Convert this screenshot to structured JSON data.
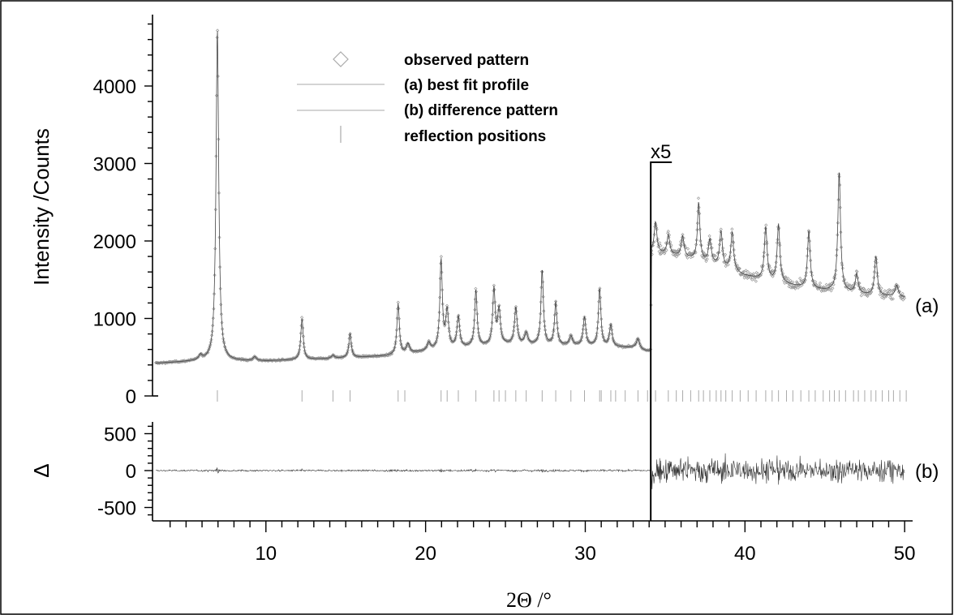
{
  "chart_data": {
    "type": "line",
    "ylabel_top": "Intensity /Counts",
    "ylabel_bottom": "Δ",
    "xlabel": "2Θ /°",
    "xlim": [
      3,
      50.5
    ],
    "ylim_top": [
      0,
      4850
    ],
    "ylim_bottom": [
      -650,
      620
    ],
    "x_ticks": [
      10,
      20,
      30,
      40,
      50
    ],
    "y_ticks_top": [
      0,
      1000,
      2000,
      3000,
      4000
    ],
    "y_ticks_bottom": [
      -500,
      0,
      500
    ],
    "scale_break": {
      "x": 34.1,
      "label": "x5",
      "factor": 5
    },
    "panel_labels": [
      "(a)",
      "(b)"
    ],
    "grid": false,
    "legend_position": "top-center",
    "legend": [
      {
        "name": "observed pattern",
        "marker": "diamond"
      },
      {
        "name": "(a) best fit profile",
        "marker": "line"
      },
      {
        "name": "(b) difference pattern",
        "marker": "line"
      },
      {
        "name": "reflection positions",
        "marker": "tick"
      }
    ],
    "background": [
      [
        3,
        420
      ],
      [
        6,
        450
      ],
      [
        10,
        450
      ],
      [
        14,
        480
      ],
      [
        18,
        520
      ],
      [
        21,
        600
      ],
      [
        25,
        660
      ],
      [
        30,
        640
      ],
      [
        33,
        620
      ],
      [
        34.1,
        550
      ],
      [
        34.15,
        1850
      ],
      [
        36,
        1800
      ],
      [
        38,
        1700
      ],
      [
        40,
        1550
      ],
      [
        44,
        1380
      ],
      [
        48,
        1300
      ],
      [
        50,
        1270
      ]
    ],
    "peaks": [
      {
        "x": 5.9,
        "height": 60,
        "width": 0.12
      },
      {
        "x": 6.96,
        "height": 4300,
        "width": 0.1
      },
      {
        "x": 9.3,
        "height": 50,
        "width": 0.12
      },
      {
        "x": 12.26,
        "height": 530,
        "width": 0.09
      },
      {
        "x": 14.2,
        "height": 40,
        "width": 0.12
      },
      {
        "x": 15.27,
        "height": 310,
        "width": 0.09
      },
      {
        "x": 18.28,
        "height": 660,
        "width": 0.09
      },
      {
        "x": 18.9,
        "height": 120,
        "width": 0.12
      },
      {
        "x": 20.2,
        "height": 100,
        "width": 0.12
      },
      {
        "x": 20.97,
        "height": 1150,
        "width": 0.09
      },
      {
        "x": 21.35,
        "height": 480,
        "width": 0.1
      },
      {
        "x": 22.05,
        "height": 400,
        "width": 0.1
      },
      {
        "x": 23.15,
        "height": 730,
        "width": 0.09
      },
      {
        "x": 24.28,
        "height": 720,
        "width": 0.09
      },
      {
        "x": 24.6,
        "height": 450,
        "width": 0.1
      },
      {
        "x": 25.65,
        "height": 480,
        "width": 0.1
      },
      {
        "x": 26.3,
        "height": 150,
        "width": 0.12
      },
      {
        "x": 27.3,
        "height": 970,
        "width": 0.09
      },
      {
        "x": 28.15,
        "height": 560,
        "width": 0.09
      },
      {
        "x": 29.1,
        "height": 120,
        "width": 0.12
      },
      {
        "x": 29.95,
        "height": 370,
        "width": 0.1
      },
      {
        "x": 30.9,
        "height": 750,
        "width": 0.09
      },
      {
        "x": 31.6,
        "height": 280,
        "width": 0.1
      },
      {
        "x": 33.3,
        "height": 130,
        "width": 0.12
      },
      {
        "x": 34.4,
        "height": 400,
        "width": 0.1
      },
      {
        "x": 35.2,
        "height": 250,
        "width": 0.1
      },
      {
        "x": 36.1,
        "height": 260,
        "width": 0.1
      },
      {
        "x": 37.1,
        "height": 750,
        "width": 0.09
      },
      {
        "x": 37.8,
        "height": 300,
        "width": 0.1
      },
      {
        "x": 38.5,
        "height": 450,
        "width": 0.1
      },
      {
        "x": 39.2,
        "height": 500,
        "width": 0.1
      },
      {
        "x": 41.3,
        "height": 680,
        "width": 0.1
      },
      {
        "x": 42.1,
        "height": 750,
        "width": 0.1
      },
      {
        "x": 44.0,
        "height": 750,
        "width": 0.1
      },
      {
        "x": 45.9,
        "height": 1550,
        "width": 0.1
      },
      {
        "x": 47.0,
        "height": 250,
        "width": 0.1
      },
      {
        "x": 48.2,
        "height": 500,
        "width": 0.1
      },
      {
        "x": 49.5,
        "height": 150,
        "width": 0.12
      }
    ],
    "reflection_positions": [
      6.96,
      12.26,
      14.2,
      15.27,
      18.28,
      18.7,
      20.97,
      21.35,
      22.05,
      23.15,
      24.28,
      24.6,
      25.0,
      25.65,
      26.3,
      27.3,
      28.15,
      29.1,
      29.95,
      30.9,
      31.0,
      31.6,
      31.9,
      32.5,
      33.3,
      33.9,
      34.4,
      35.2,
      35.7,
      36.1,
      36.6,
      37.1,
      37.4,
      37.8,
      38.2,
      38.5,
      38.8,
      39.2,
      39.7,
      40.2,
      40.7,
      41.3,
      41.7,
      42.1,
      42.6,
      43.0,
      43.5,
      44.0,
      44.4,
      44.9,
      45.3,
      45.6,
      45.9,
      46.3,
      46.8,
      47.1,
      47.5,
      47.9,
      48.2,
      48.6,
      49.0,
      49.3,
      49.7,
      50.1
    ]
  }
}
